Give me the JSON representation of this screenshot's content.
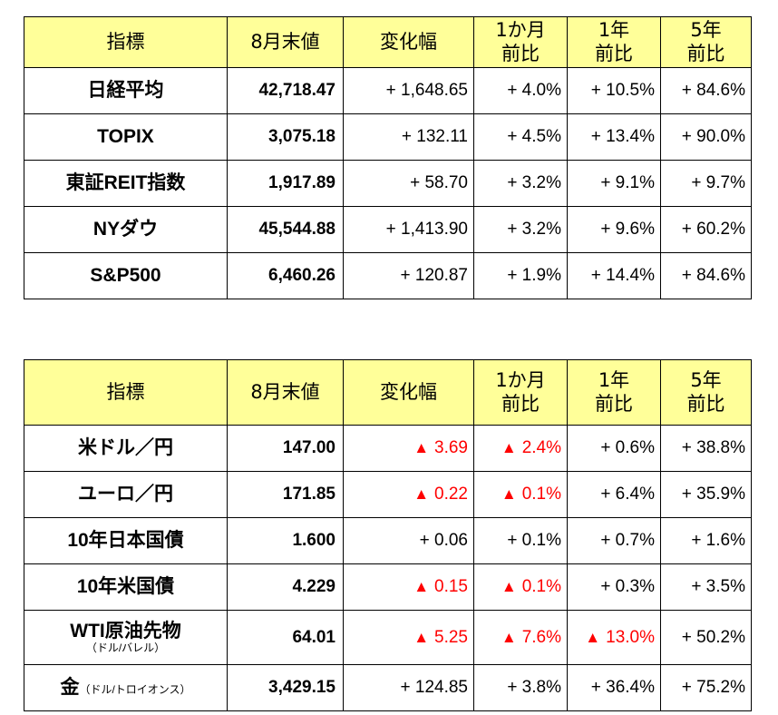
{
  "headers": {
    "indicator": "指標",
    "end_value": "8月末値",
    "change": "変化幅",
    "m1_line1": "1か月",
    "m1_line2": "前比",
    "y1_line1": "1年",
    "y1_line2": "前比",
    "y5_line1": "5年",
    "y5_line2": "前比"
  },
  "stocks": [
    {
      "name": "日経平均",
      "value": "42,718.47",
      "change": "+ 1,648.65",
      "m1": "+ 4.0%",
      "y1": "+ 10.5%",
      "y5": "+ 84.6%"
    },
    {
      "name": "TOPIX",
      "value": "3,075.18",
      "change": "+ 132.11",
      "m1": "+ 4.5%",
      "y1": "+ 13.4%",
      "y5": "+ 90.0%"
    },
    {
      "name": "東証REIT指数",
      "value": "1,917.89",
      "change": "+ 58.70",
      "m1": "+ 3.2%",
      "y1": "+ 9.1%",
      "y5": "+ 9.7%"
    },
    {
      "name": "NYダウ",
      "value": "45,544.88",
      "change": "+ 1,413.90",
      "m1": "+ 3.2%",
      "y1": "+ 9.6%",
      "y5": "+ 60.2%"
    },
    {
      "name": "S&P500",
      "value": "6,460.26",
      "change": "+ 120.87",
      "m1": "+ 1.9%",
      "y1": "+ 14.4%",
      "y5": "+ 84.6%"
    }
  ],
  "rates": [
    {
      "name": "米ドル／円",
      "value": "147.00",
      "change": "3.69",
      "change_neg": true,
      "m1": "2.4%",
      "m1_neg": true,
      "y1": "+ 0.6%",
      "y5": "+ 38.8%"
    },
    {
      "name": "ユーロ／円",
      "value": "171.85",
      "change": "0.22",
      "change_neg": true,
      "m1": "0.1%",
      "m1_neg": true,
      "y1": "+ 6.4%",
      "y5": "+ 35.9%"
    },
    {
      "name": "10年日本国債",
      "value": "1.600",
      "change": "+ 0.06",
      "m1": "+ 0.1%",
      "y1": "+ 0.7%",
      "y5": "+ 1.6%"
    },
    {
      "name": "10年米国債",
      "value": "4.229",
      "change": "0.15",
      "change_neg": true,
      "m1": "0.1%",
      "m1_neg": true,
      "y1": "+ 0.3%",
      "y5": "+ 3.5%"
    },
    {
      "name": "WTI原油先物",
      "sub": "（ドル/バレル）",
      "value": "64.01",
      "change": "5.25",
      "change_neg": true,
      "m1": "7.6%",
      "m1_neg": true,
      "y1": "13.0%",
      "y1_neg": true,
      "y5": "+ 50.2%"
    },
    {
      "name": "金",
      "inline_sub": "（ドル/トロイオンス）",
      "value": "3,429.15",
      "change": "+ 124.85",
      "m1": "+ 3.8%",
      "y1": "+ 36.4%",
      "y5": "+ 75.2%"
    }
  ],
  "neg_marker": "▲",
  "neg_color": "#ff0000",
  "header_bg": "#ffff99"
}
